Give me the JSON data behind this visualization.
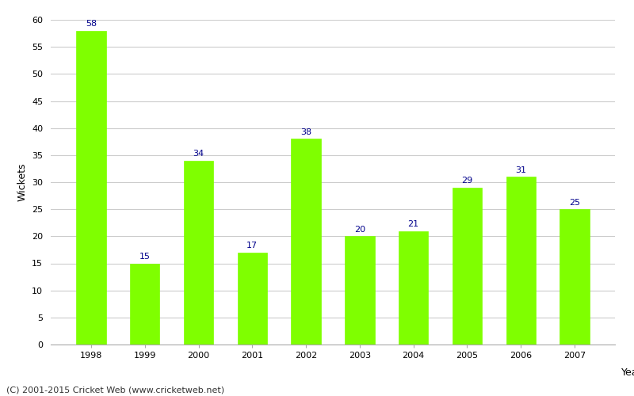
{
  "years": [
    "1998",
    "1999",
    "2000",
    "2001",
    "2002",
    "2003",
    "2004",
    "2005",
    "2006",
    "2007"
  ],
  "values": [
    58,
    15,
    34,
    17,
    38,
    20,
    21,
    29,
    31,
    25
  ],
  "bar_color": "#7FFF00",
  "bar_edge_color": "#7FFF00",
  "label_color": "#00008B",
  "xlabel": "Year",
  "ylabel": "Wickets",
  "ylim": [
    0,
    60
  ],
  "yticks": [
    0,
    5,
    10,
    15,
    20,
    25,
    30,
    35,
    40,
    45,
    50,
    55,
    60
  ],
  "grid_color": "#cccccc",
  "bg_color": "#ffffff",
  "footer": "(C) 2001-2015 Cricket Web (www.cricketweb.net)",
  "label_fontsize": 8,
  "axis_label_fontsize": 9,
  "tick_fontsize": 8,
  "footer_fontsize": 8
}
